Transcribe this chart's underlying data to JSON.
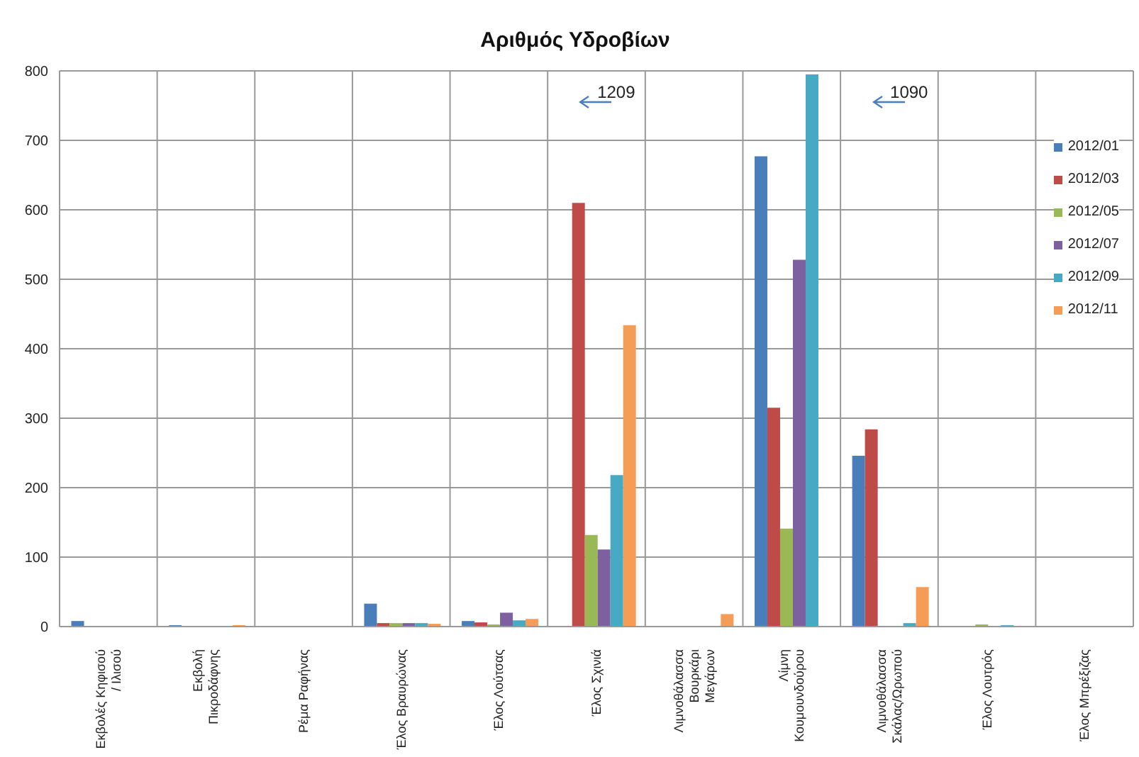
{
  "chart_data": {
    "type": "bar",
    "title": "Αριθμός Υδροβίων",
    "categories": [
      "Εκβολές Κηφισού / Ιλισού",
      "Εκβολή Πικροδάφνης",
      "Ρέμα Ραφήνας",
      "Έλος Βραυρώνας",
      "Έλος Λούτσας",
      "Έλος Σχινιά",
      "Λιμνοθάλασσα Βουρκάρι Μεγάρων",
      "Λίμνη Κουμουνδούρου",
      "Λιμνοθάλασσα Σκάλας/Ωρωπού",
      "Έλος Λουτρός",
      "Έλος Μπρέξιζας"
    ],
    "series": [
      {
        "name": "2012/01",
        "color": "#4a7ebb",
        "values": [
          8,
          2,
          0,
          33,
          8,
          null,
          0,
          677,
          246,
          0,
          0
        ]
      },
      {
        "name": "2012/03",
        "color": "#be4b48",
        "values": [
          0,
          0,
          0,
          5,
          6,
          610,
          0,
          315,
          284,
          0,
          0
        ]
      },
      {
        "name": "2012/05",
        "color": "#98b954",
        "values": [
          0,
          0,
          0,
          5,
          3,
          132,
          0,
          141,
          0,
          3,
          0
        ]
      },
      {
        "name": "2012/07",
        "color": "#7d60a0",
        "values": [
          0,
          0,
          0,
          5,
          20,
          111,
          0,
          528,
          0,
          null,
          0
        ]
      },
      {
        "name": "2012/09",
        "color": "#46aac5",
        "values": [
          0,
          0,
          0,
          5,
          9,
          218,
          1,
          795,
          5,
          2,
          0
        ]
      },
      {
        "name": "2012/11",
        "color": "#f59d56",
        "values": [
          0,
          2,
          0,
          4,
          11,
          434,
          18,
          null,
          57,
          0,
          0
        ]
      }
    ],
    "ylim": [
      0,
      800
    ],
    "yticks": [
      0,
      100,
      200,
      300,
      400,
      500,
      600,
      700,
      800
    ],
    "grid": true,
    "legend": "top right",
    "annotations": [
      "1209",
      "1090"
    ]
  }
}
